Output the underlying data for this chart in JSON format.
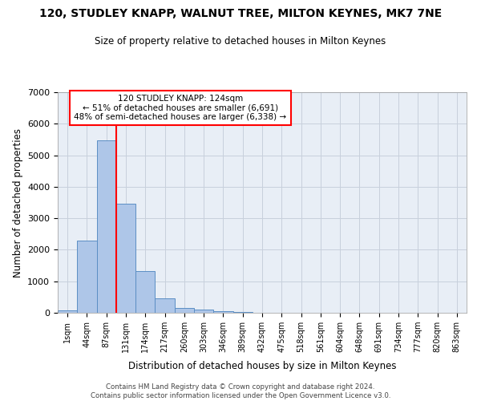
{
  "title": "120, STUDLEY KNAPP, WALNUT TREE, MILTON KEYNES, MK7 7NE",
  "subtitle": "Size of property relative to detached houses in Milton Keynes",
  "xlabel": "Distribution of detached houses by size in Milton Keynes",
  "ylabel": "Number of detached properties",
  "bin_labels": [
    "1sqm",
    "44sqm",
    "87sqm",
    "131sqm",
    "174sqm",
    "217sqm",
    "260sqm",
    "303sqm",
    "346sqm",
    "389sqm",
    "432sqm",
    "475sqm",
    "518sqm",
    "561sqm",
    "604sqm",
    "648sqm",
    "691sqm",
    "734sqm",
    "777sqm",
    "820sqm",
    "863sqm"
  ],
  "bar_heights": [
    80,
    2280,
    5470,
    3460,
    1320,
    460,
    160,
    90,
    60,
    35,
    0,
    0,
    0,
    0,
    0,
    0,
    0,
    0,
    0,
    0,
    0
  ],
  "bar_color": "#aec6e8",
  "bar_edge_color": "#5b8ec4",
  "grid_color": "#c8d0dc",
  "background_color": "#e8eef6",
  "vline_color": "red",
  "vline_pos": 2.5,
  "annotation_text": "120 STUDLEY KNAPP: 124sqm\n← 51% of detached houses are smaller (6,691)\n48% of semi-detached houses are larger (6,338) →",
  "annotation_box_color": "white",
  "annotation_box_edge": "red",
  "ylim": [
    0,
    7000
  ],
  "yticks": [
    0,
    1000,
    2000,
    3000,
    4000,
    5000,
    6000,
    7000
  ],
  "footer_line1": "Contains HM Land Registry data © Crown copyright and database right 2024.",
  "footer_line2": "Contains public sector information licensed under the Open Government Licence v3.0."
}
